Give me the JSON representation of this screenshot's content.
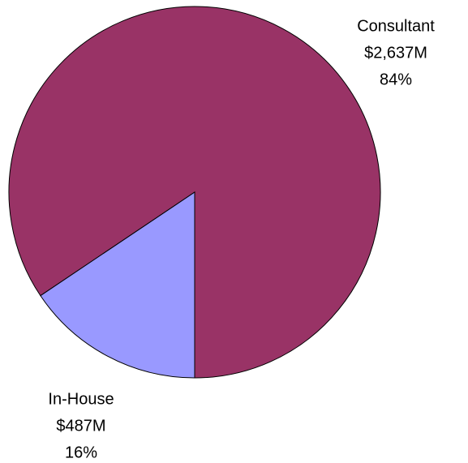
{
  "chart_data": {
    "type": "pie",
    "categories": [
      "Consultant",
      "In-House"
    ],
    "values": [
      2637,
      487
    ],
    "value_labels": [
      "$2,637M",
      "$487M"
    ],
    "percents": [
      84,
      16
    ],
    "percent_labels": [
      "84%",
      "16%"
    ],
    "colors": [
      "#993366",
      "#9999ff"
    ]
  }
}
